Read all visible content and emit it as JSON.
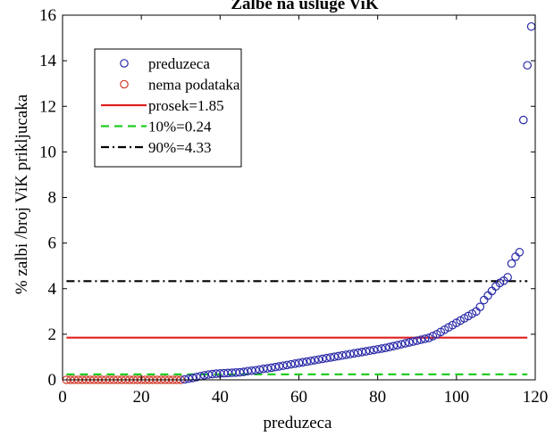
{
  "chart_data": {
    "type": "scatter",
    "title": "Žalbe na usluge ViK",
    "xlabel": "preduzeca",
    "ylabel": "% zalbi /broj ViK prikljucaka",
    "xlim": [
      0,
      120
    ],
    "ylim": [
      0,
      16
    ],
    "xticks": [
      "0",
      "20",
      "40",
      "60",
      "80",
      "100",
      "120"
    ],
    "yticks": [
      "0",
      "2",
      "4",
      "6",
      "8",
      "10",
      "12",
      "14",
      "16"
    ],
    "grid": false,
    "legend_position": "top-left",
    "legend": [
      {
        "label": "preduzeca",
        "kind": "marker",
        "color": "#2a2aa8"
      },
      {
        "label": "nema podataka",
        "kind": "marker",
        "color": "#d03a2a"
      },
      {
        "label": "prosek=1.85",
        "kind": "line",
        "color": "#e02020",
        "dash": "solid"
      },
      {
        "label": "10%=0.24",
        "kind": "line",
        "color": "#22cc22",
        "dash": "dashed"
      },
      {
        "label": "90%=4.33",
        "kind": "line",
        "color": "#000000",
        "dash": "dashdot"
      }
    ],
    "reference_lines": [
      {
        "name": "prosek",
        "y": 1.85,
        "x_range": [
          1,
          118
        ],
        "color": "#e02020",
        "dash": "solid"
      },
      {
        "name": "10%",
        "y": 0.24,
        "x_range": [
          1,
          118
        ],
        "color": "#22cc22",
        "dash": "dashed"
      },
      {
        "name": "90%",
        "y": 4.33,
        "x_range": [
          1,
          118
        ],
        "color": "#000000",
        "dash": "dashdot"
      }
    ],
    "series": [
      {
        "name": "nema podataka",
        "color": "#d03a2a",
        "x_start": 1,
        "values": [
          0,
          0,
          0,
          0,
          0,
          0,
          0,
          0,
          0,
          0,
          0,
          0,
          0,
          0,
          0,
          0,
          0,
          0,
          0,
          0,
          0,
          0,
          0,
          0,
          0,
          0,
          0,
          0,
          0,
          0
        ]
      },
      {
        "name": "preduzeca",
        "color": "#2a2aa8",
        "x_start": 31,
        "values": [
          0.02,
          0.05,
          0.08,
          0.12,
          0.16,
          0.2,
          0.23,
          0.25,
          0.27,
          0.28,
          0.29,
          0.3,
          0.31,
          0.32,
          0.33,
          0.35,
          0.38,
          0.4,
          0.42,
          0.45,
          0.48,
          0.5,
          0.53,
          0.56,
          0.59,
          0.62,
          0.65,
          0.68,
          0.71,
          0.74,
          0.77,
          0.8,
          0.83,
          0.86,
          0.89,
          0.92,
          0.95,
          0.98,
          1.01,
          1.04,
          1.07,
          1.1,
          1.13,
          1.16,
          1.19,
          1.22,
          1.25,
          1.28,
          1.31,
          1.34,
          1.37,
          1.4,
          1.44,
          1.48,
          1.52,
          1.56,
          1.6,
          1.64,
          1.68,
          1.72,
          1.76,
          1.8,
          1.84,
          1.92,
          2.0,
          2.1,
          2.2,
          2.3,
          2.4,
          2.5,
          2.6,
          2.7,
          2.8,
          2.9,
          3.0,
          3.2,
          3.5,
          3.7,
          3.9,
          4.1,
          4.25,
          4.35,
          4.5,
          5.1,
          5.4,
          5.6,
          11.4,
          13.8,
          15.5
        ]
      }
    ]
  }
}
